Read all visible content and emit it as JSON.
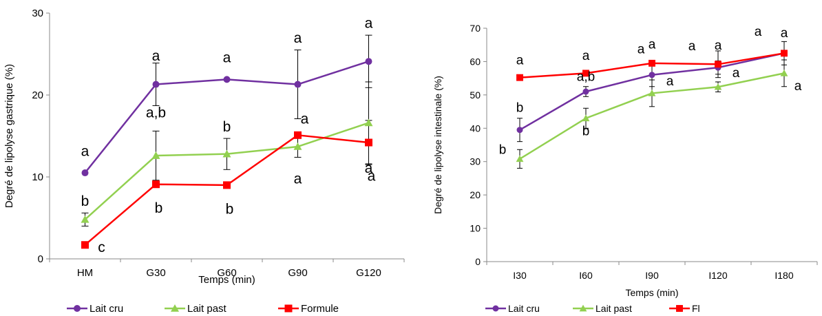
{
  "chart_data": [
    {
      "type": "line",
      "xlabel": "Temps (min)",
      "ylabel": "Degré de lipolyse gastrique (%)",
      "categories": [
        "HM",
        "G30",
        "G60",
        "G90",
        "G120"
      ],
      "ylim": [
        0,
        30
      ],
      "yticks": [
        0,
        10,
        20,
        30
      ],
      "grid": false,
      "legend_position": "bottom",
      "series": [
        {
          "name": "Lait cru",
          "color": "#7030A0",
          "marker": "circle",
          "values": [
            10.5,
            21.3,
            21.9,
            21.3,
            24.1
          ],
          "errors": [
            null,
            2.6,
            null,
            4.2,
            3.2
          ],
          "labels": [
            "a",
            "a",
            "a",
            "a",
            "a"
          ]
        },
        {
          "name": "Lait past",
          "color": "#92D050",
          "marker": "triangle",
          "values": [
            4.8,
            12.6,
            12.8,
            13.7,
            16.6
          ],
          "errors": [
            0.8,
            3.0,
            1.9,
            1.3,
            5.0
          ],
          "labels": [
            "b",
            "a,b",
            "b",
            "a",
            "a"
          ]
        },
        {
          "name": "Formule",
          "color": "#FF0000",
          "marker": "square",
          "values": [
            1.7,
            9.1,
            9.0,
            15.1,
            14.2
          ],
          "errors": [
            null,
            null,
            null,
            null,
            2.7
          ],
          "labels": [
            "c",
            "b",
            "b",
            "a",
            "a"
          ]
        }
      ]
    },
    {
      "type": "line",
      "xlabel": "Temps (min)",
      "ylabel": "Degré de lipolyse intestinale (%)",
      "categories": [
        "I30",
        "I60",
        "I90",
        "I120",
        "I180"
      ],
      "ylim": [
        0,
        70
      ],
      "yticks": [
        0,
        10,
        20,
        30,
        40,
        50,
        60,
        70
      ],
      "grid": false,
      "legend_position": "bottom",
      "series": [
        {
          "name": "Lait cru",
          "color": "#7030A0",
          "marker": "circle",
          "values": [
            39.5,
            51.0,
            56.0,
            58.2,
            62.5
          ],
          "errors": [
            3.5,
            1.5,
            3.5,
            2.0,
            3.5
          ],
          "labels": [
            "b",
            "a,b",
            "a",
            "a",
            "a"
          ]
        },
        {
          "name": "Lait past",
          "color": "#92D050",
          "marker": "triangle",
          "values": [
            30.8,
            43.0,
            50.5,
            52.4,
            56.5
          ],
          "errors": [
            2.8,
            3.0,
            4.0,
            1.5,
            4.0
          ],
          "labels": [
            "b",
            "b",
            "a",
            "a",
            "a"
          ]
        },
        {
          "name": "Fl",
          "color": "#FF0000",
          "marker": "square",
          "values": [
            55.2,
            56.5,
            59.5,
            59.2,
            62.5
          ],
          "errors": [
            null,
            null,
            null,
            4.0,
            null
          ],
          "labels": [
            "a",
            "a",
            "a",
            "a",
            "a"
          ]
        }
      ]
    }
  ]
}
